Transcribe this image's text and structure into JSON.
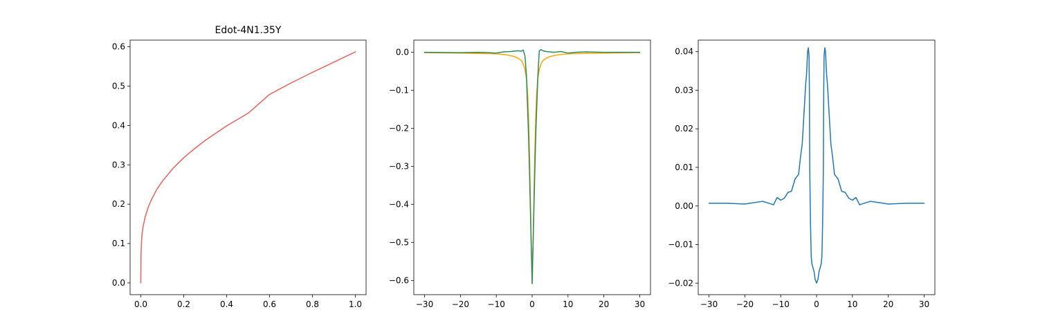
{
  "chart_data": [
    {
      "type": "line",
      "title": "Edot-4N1.35Y",
      "xlabel": "",
      "ylabel": "",
      "xlim": [
        -0.05,
        1.05
      ],
      "ylim": [
        -0.03,
        0.617
      ],
      "xticks": [
        0.0,
        0.2,
        0.4,
        0.6,
        0.8,
        1.0
      ],
      "xtick_labels": [
        "0.0",
        "0.2",
        "0.4",
        "0.6",
        "0.8",
        "1.0"
      ],
      "yticks": [
        0.0,
        0.1,
        0.2,
        0.3,
        0.4,
        0.5,
        0.6
      ],
      "ytick_labels": [
        "0.0",
        "0.1",
        "0.2",
        "0.3",
        "0.4",
        "0.5",
        "0.6"
      ],
      "grid": false,
      "series": [
        {
          "color": "#e8615a",
          "x": [
            0.0,
            0.001,
            0.003,
            0.006,
            0.01,
            0.02,
            0.035,
            0.05,
            0.075,
            0.1,
            0.15,
            0.2,
            0.25,
            0.3,
            0.4,
            0.5,
            0.6,
            0.7,
            0.8,
            0.9,
            1.0
          ],
          "y": [
            0.0,
            0.073,
            0.103,
            0.124,
            0.141,
            0.167,
            0.193,
            0.212,
            0.238,
            0.258,
            0.291,
            0.318,
            0.341,
            0.362,
            0.399,
            0.431,
            0.479,
            0.508,
            0.535,
            0.561,
            0.587
          ]
        }
      ]
    },
    {
      "type": "line",
      "title": "",
      "xlabel": "",
      "ylabel": "",
      "xlim": [
        -33,
        33
      ],
      "ylim": [
        -0.637,
        0.032
      ],
      "xticks": [
        -30,
        -20,
        -10,
        0,
        10,
        20,
        30
      ],
      "xtick_labels": [
        "−30",
        "−20",
        "−10",
        "0",
        "10",
        "20",
        "30"
      ],
      "yticks": [
        0.0,
        -0.1,
        -0.2,
        -0.3,
        -0.4,
        -0.5,
        -0.6
      ],
      "ytick_labels": [
        "0.0",
        "−0.1",
        "−0.2",
        "−0.3",
        "−0.4",
        "−0.5",
        "−0.6"
      ],
      "grid": false,
      "series": [
        {
          "color": "#ffa500",
          "x": [
            -30,
            -20,
            -10,
            -7,
            -5,
            -4,
            -3,
            -2.5,
            -2,
            -1.5,
            -1.2,
            -1,
            -0.7,
            -0.5,
            -0.3,
            0,
            0.3,
            0.5,
            0.7,
            1,
            1.2,
            1.5,
            2,
            2.5,
            3,
            4,
            5,
            7,
            10,
            20,
            30
          ],
          "y": [
            -0.001,
            -0.002,
            -0.004,
            -0.007,
            -0.011,
            -0.015,
            -0.022,
            -0.03,
            -0.045,
            -0.075,
            -0.12,
            -0.17,
            -0.28,
            -0.38,
            -0.48,
            -0.608,
            -0.48,
            -0.38,
            -0.28,
            -0.17,
            -0.12,
            -0.075,
            -0.045,
            -0.03,
            -0.022,
            -0.015,
            -0.011,
            -0.007,
            -0.004,
            -0.002,
            -0.001
          ]
        },
        {
          "color": "#2e8b57",
          "x": [
            -30,
            -20,
            -15,
            -12,
            -10,
            -8,
            -6,
            -4,
            -3,
            -2.5,
            -2,
            -1.6,
            -1.3,
            -1,
            -0.7,
            -0.4,
            0,
            0.4,
            0.7,
            1,
            1.3,
            1.6,
            2,
            2.5,
            3,
            4,
            6,
            8,
            10,
            12,
            15,
            20,
            30
          ],
          "y": [
            0.0,
            -0.001,
            0.0,
            -0.001,
            -0.002,
            0.001,
            0.002,
            0.004,
            0.003,
            0.006,
            -0.01,
            -0.06,
            -0.14,
            -0.22,
            -0.33,
            -0.45,
            -0.608,
            -0.45,
            -0.33,
            -0.22,
            -0.14,
            -0.06,
            0.004,
            0.007,
            0.004,
            0.002,
            0.0,
            0.002,
            -0.002,
            0.0,
            0.001,
            0.0,
            0.0
          ]
        }
      ]
    },
    {
      "type": "line",
      "title": "",
      "xlabel": "",
      "ylabel": "",
      "xlim": [
        -33,
        33
      ],
      "ylim": [
        -0.023,
        0.043
      ],
      "xticks": [
        -30,
        -20,
        -10,
        0,
        10,
        20,
        30
      ],
      "xtick_labels": [
        "−30",
        "−20",
        "−10",
        "0",
        "10",
        "20",
        "30"
      ],
      "yticks": [
        0.04,
        0.03,
        0.02,
        0.01,
        0.0,
        -0.01,
        -0.02
      ],
      "ytick_labels": [
        "0.04",
        "0.03",
        "0.02",
        "0.01",
        "0.00",
        "−0.01",
        "−0.02"
      ],
      "grid": false,
      "series": [
        {
          "color": "#1f77b4",
          "x": [
            -30,
            -25,
            -20,
            -15,
            -12,
            -11,
            -10,
            -9,
            -8,
            -7,
            -6,
            -5,
            -4.5,
            -4,
            -3.5,
            -3,
            -2.8,
            -2.5,
            -2.3,
            -2.1,
            -2,
            -1.9,
            -1.7,
            -1.5,
            -1.3,
            -1,
            -0.7,
            -0.4,
            0,
            0.4,
            0.7,
            1,
            1.3,
            1.5,
            1.7,
            1.9,
            2,
            2.1,
            2.3,
            2.5,
            2.8,
            3,
            3.5,
            4,
            4.5,
            5,
            6,
            7,
            8,
            9,
            10,
            11,
            12,
            15,
            20,
            25,
            30
          ],
          "y": [
            0.0007,
            0.0007,
            0.0005,
            0.0012,
            0.0003,
            0.0022,
            0.0015,
            0.002,
            0.0035,
            0.0038,
            0.007,
            0.0082,
            0.0125,
            0.016,
            0.024,
            0.032,
            0.034,
            0.04,
            0.041,
            0.039,
            0.03,
            0.01,
            -0.004,
            -0.013,
            -0.015,
            -0.016,
            -0.017,
            -0.019,
            -0.02,
            -0.019,
            -0.017,
            -0.016,
            -0.015,
            -0.013,
            -0.004,
            0.01,
            0.03,
            0.039,
            0.041,
            0.04,
            0.034,
            0.032,
            0.024,
            0.016,
            0.0125,
            0.0082,
            0.007,
            0.0038,
            0.0035,
            0.002,
            0.0015,
            0.0022,
            0.0003,
            0.0012,
            0.0005,
            0.0007,
            0.0007
          ]
        }
      ]
    }
  ]
}
